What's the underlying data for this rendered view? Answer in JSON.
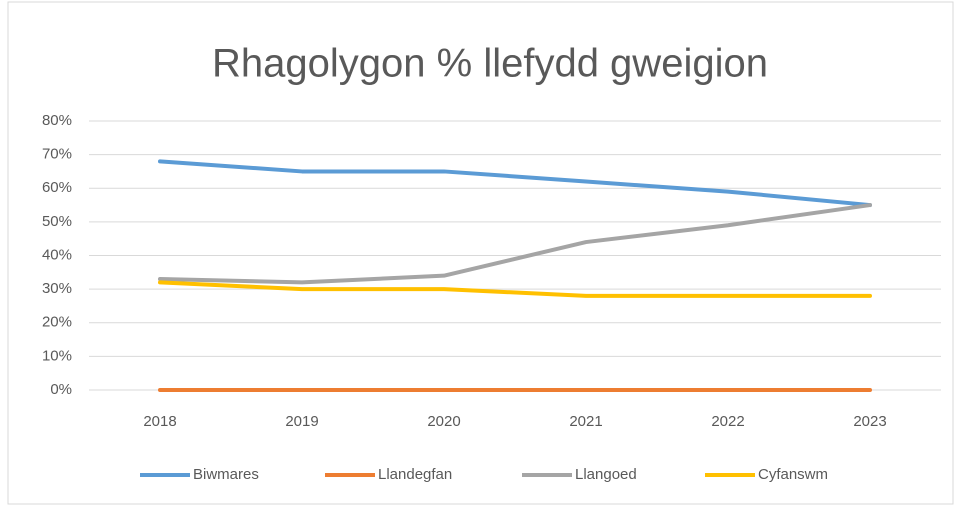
{
  "chart_data": {
    "type": "line",
    "title": "Rhagolygon %  llefydd gweigion",
    "categories": [
      "2018",
      "2019",
      "2020",
      "2021",
      "2022",
      "2023"
    ],
    "series": [
      {
        "name": "Biwmares",
        "color": "#5b9bd5",
        "values": [
          68,
          65,
          65,
          62,
          59,
          55
        ]
      },
      {
        "name": "Llandegfan",
        "color": "#ed7d31",
        "values": [
          0,
          0,
          0,
          0,
          0,
          0
        ]
      },
      {
        "name": "Llangoed",
        "color": "#a5a5a5",
        "values": [
          33,
          32,
          34,
          44,
          49,
          55
        ]
      },
      {
        "name": "Cyfanswm",
        "color": "#ffc000",
        "values": [
          32,
          30,
          30,
          28,
          28,
          28
        ]
      }
    ],
    "ylim": [
      0,
      80
    ],
    "yticks": [
      {
        "value": 0,
        "label": "0%"
      },
      {
        "value": 10,
        "label": "10%"
      },
      {
        "value": 20,
        "label": "20%"
      },
      {
        "value": 30,
        "label": "30%"
      },
      {
        "value": 40,
        "label": "40%"
      },
      {
        "value": 50,
        "label": "50%"
      },
      {
        "value": 60,
        "label": "60%"
      },
      {
        "value": 70,
        "label": "70%"
      },
      {
        "value": 80,
        "label": "80%"
      }
    ],
    "grid": true,
    "legend": "bottom"
  }
}
